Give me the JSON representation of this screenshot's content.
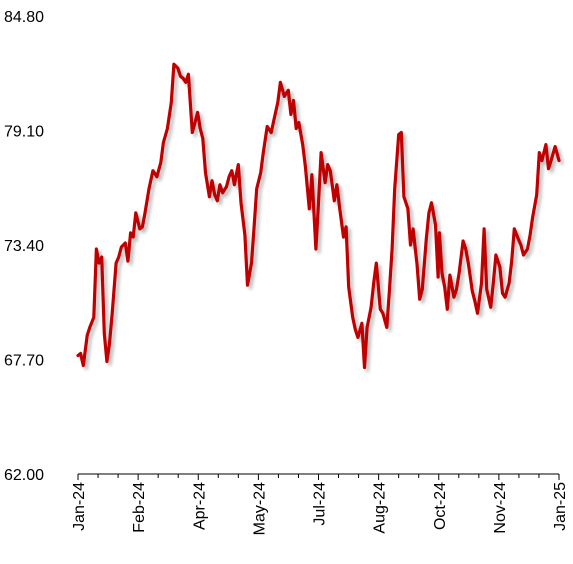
{
  "chart_data": {
    "type": "line",
    "title": "",
    "xlabel": "",
    "ylabel": "",
    "ylim": [
      62.0,
      84.8
    ],
    "y_ticks": [
      "84.80",
      "79.10",
      "73.40",
      "67.70",
      "62.00"
    ],
    "x_ticks": [
      "Jan-24",
      "Feb-24",
      "Apr-24",
      "May-24",
      "Jul-24",
      "Aug-24",
      "Oct-24",
      "Nov-24",
      "Jan-25"
    ],
    "grid": false,
    "legend": "none",
    "colors": {
      "line": "#c00000",
      "shadow": "#bdbdbd",
      "axis": "#000000"
    },
    "series": [
      {
        "x": [
          "2024-01-02",
          "2024-01-04",
          "2024-01-06",
          "2024-01-09",
          "2024-01-11",
          "2024-01-14",
          "2024-01-16",
          "2024-01-18",
          "2024-01-20",
          "2024-01-22",
          "2024-01-24",
          "2024-01-26",
          "2024-01-28",
          "2024-01-31",
          "2024-02-02",
          "2024-02-04",
          "2024-02-07",
          "2024-02-09",
          "2024-02-11",
          "2024-02-13",
          "2024-02-15",
          "2024-02-18",
          "2024-02-20",
          "2024-02-22",
          "2024-02-25",
          "2024-02-28",
          "2024-03-02",
          "2024-03-05",
          "2024-03-07",
          "2024-03-10",
          "2024-03-13",
          "2024-03-15",
          "2024-03-18",
          "2024-03-20",
          "2024-03-22",
          "2024-03-24",
          "2024-03-26",
          "2024-03-29",
          "2024-03-31",
          "2024-04-02",
          "2024-04-04",
          "2024-04-06",
          "2024-04-08",
          "2024-04-11",
          "2024-04-13",
          "2024-04-15",
          "2024-04-17",
          "2024-04-19",
          "2024-04-21",
          "2024-04-24",
          "2024-04-26",
          "2024-04-28",
          "2024-04-30",
          "2024-05-03",
          "2024-05-05",
          "2024-05-08",
          "2024-05-10",
          "2024-05-13",
          "2024-05-15",
          "2024-05-17",
          "2024-05-20",
          "2024-05-22",
          "2024-05-25",
          "2024-05-28",
          "2024-05-30",
          "2024-06-02",
          "2024-06-04",
          "2024-06-07",
          "2024-06-10",
          "2024-06-12",
          "2024-06-14",
          "2024-06-16",
          "2024-06-18",
          "2024-06-21",
          "2024-06-23",
          "2024-06-26",
          "2024-06-28",
          "2024-07-01",
          "2024-07-03",
          "2024-07-05",
          "2024-07-08",
          "2024-07-10",
          "2024-07-12",
          "2024-07-15",
          "2024-07-17",
          "2024-07-19",
          "2024-07-22",
          "2024-07-24",
          "2024-07-26",
          "2024-07-29",
          "2024-07-31",
          "2024-08-02",
          "2024-08-05",
          "2024-08-07",
          "2024-08-09",
          "2024-08-12",
          "2024-08-14",
          "2024-08-16",
          "2024-08-19",
          "2024-08-21",
          "2024-08-24",
          "2024-08-26",
          "2024-08-28",
          "2024-08-30",
          "2024-09-02",
          "2024-09-04",
          "2024-09-06",
          "2024-09-09",
          "2024-09-11",
          "2024-09-13",
          "2024-09-16",
          "2024-09-18",
          "2024-09-20",
          "2024-09-23",
          "2024-09-25",
          "2024-09-27",
          "2024-09-30",
          "2024-10-02",
          "2024-10-03",
          "2024-10-05",
          "2024-10-07",
          "2024-10-09",
          "2024-10-11",
          "2024-10-14",
          "2024-10-16",
          "2024-10-18",
          "2024-10-21",
          "2024-10-23",
          "2024-10-25",
          "2024-10-28",
          "2024-10-30",
          "2024-11-01",
          "2024-11-04",
          "2024-11-06",
          "2024-11-08",
          "2024-11-11",
          "2024-11-13",
          "2024-11-15",
          "2024-11-18",
          "2024-11-20",
          "2024-11-22",
          "2024-11-25",
          "2024-11-27",
          "2024-11-29",
          "2024-12-02",
          "2024-12-04",
          "2024-12-06",
          "2024-12-09",
          "2024-12-11",
          "2024-12-13",
          "2024-12-16",
          "2024-12-18",
          "2024-12-20",
          "2024-12-23",
          "2024-12-25",
          "2024-12-27",
          "2024-12-30",
          "2025-01-02"
        ],
        "values": [
          67.9,
          68.0,
          67.4,
          68.9,
          69.3,
          69.8,
          73.2,
          72.5,
          72.8,
          69.0,
          67.6,
          68.5,
          70.0,
          72.5,
          72.8,
          73.3,
          73.5,
          72.6,
          74.0,
          73.8,
          75.0,
          74.2,
          74.3,
          75.0,
          76.2,
          77.1,
          76.8,
          77.5,
          78.5,
          79.2,
          80.5,
          82.4,
          82.2,
          81.8,
          81.7,
          81.5,
          81.9,
          79.0,
          79.5,
          80.0,
          79.2,
          78.7,
          77.0,
          75.8,
          76.6,
          75.9,
          75.6,
          76.4,
          76.0,
          76.3,
          76.8,
          77.1,
          76.4,
          77.4,
          75.5,
          73.9,
          71.4,
          72.5,
          74.3,
          76.2,
          77.0,
          78.0,
          79.3,
          79.0,
          79.6,
          80.5,
          81.5,
          80.8,
          81.1,
          79.9,
          80.6,
          79.2,
          79.5,
          78.4,
          77.3,
          75.2,
          76.9,
          73.2,
          75.5,
          78.0,
          76.5,
          77.4,
          77.1,
          75.6,
          76.4,
          75.3,
          73.8,
          74.3,
          71.3,
          69.8,
          69.2,
          68.8,
          69.5,
          67.3,
          69.3,
          70.3,
          71.5,
          72.5,
          70.2,
          70.0,
          69.3,
          71.2,
          73.2,
          76.2,
          78.9,
          79.0,
          75.8,
          75.2,
          73.4,
          74.2,
          72.4,
          70.7,
          71.2,
          73.7,
          75.0,
          75.5,
          74.4,
          71.8,
          74.0,
          72.0,
          71.3,
          70.2,
          71.9,
          70.8,
          71.2,
          72.0,
          73.6,
          73.2,
          72.5,
          71.1,
          70.6,
          70.0,
          71.5,
          74.2,
          71.2,
          70.3,
          71.5,
          72.9,
          72.3,
          71.0,
          70.8,
          71.5,
          72.6,
          74.2,
          73.7,
          73.4,
          72.9,
          73.2,
          73.9,
          74.8,
          75.9,
          78.0,
          77.6,
          78.4,
          77.2,
          77.6,
          78.3,
          77.6
        ]
      }
    ]
  }
}
